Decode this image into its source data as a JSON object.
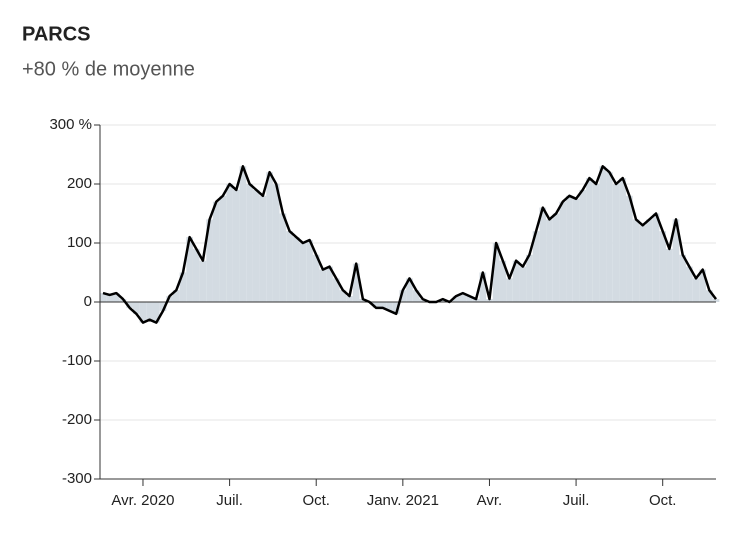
{
  "chart_data": {
    "type": "line",
    "title": "PARCS",
    "subtitle": "+80 % de moyenne",
    "categories": [
      null,
      null,
      null,
      null,
      null,
      null,
      "Avr. 2020",
      null,
      null,
      null,
      null,
      null,
      null,
      null,
      null,
      null,
      null,
      null,
      null,
      "Juil.",
      null,
      null,
      null,
      null,
      null,
      null,
      null,
      null,
      null,
      null,
      null,
      null,
      "Oct.",
      null,
      null,
      null,
      null,
      null,
      null,
      null,
      null,
      null,
      null,
      null,
      null,
      "Janv. 2021",
      null,
      null,
      null,
      null,
      null,
      null,
      null,
      null,
      null,
      null,
      null,
      null,
      "Avr.",
      null,
      null,
      null,
      null,
      null,
      null,
      null,
      null,
      null,
      null,
      null,
      null,
      "Juil.",
      null,
      null,
      null,
      null,
      null,
      null,
      null,
      null,
      null,
      null,
      null,
      null,
      "Oct.",
      null,
      null,
      null,
      null,
      null,
      null,
      null,
      null
    ],
    "values": [
      15,
      12,
      15,
      5,
      -10,
      -20,
      -35,
      -30,
      -35,
      -15,
      10,
      20,
      50,
      110,
      90,
      70,
      140,
      170,
      180,
      200,
      190,
      230,
      200,
      190,
      180,
      220,
      200,
      150,
      120,
      110,
      100,
      105,
      80,
      55,
      60,
      40,
      20,
      10,
      65,
      5,
      0,
      -10,
      -10,
      -15,
      -20,
      20,
      40,
      20,
      5,
      0,
      0,
      5,
      0,
      10,
      15,
      10,
      5,
      50,
      5,
      100,
      70,
      40,
      70,
      60,
      80,
      120,
      160,
      140,
      150,
      170,
      180,
      175,
      190,
      210,
      200,
      230,
      220,
      200,
      210,
      180,
      140,
      130,
      140,
      150,
      120,
      90,
      140,
      80,
      60,
      40,
      55,
      20,
      5
    ],
    "color": "#000000",
    "area_color": "#d3dbe2",
    "ylim": [
      -300,
      300
    ],
    "yticks": [
      -300,
      -200,
      -100,
      0,
      100,
      200,
      {
        "value": 300,
        "label": "300 %"
      }
    ],
    "grid": true
  }
}
